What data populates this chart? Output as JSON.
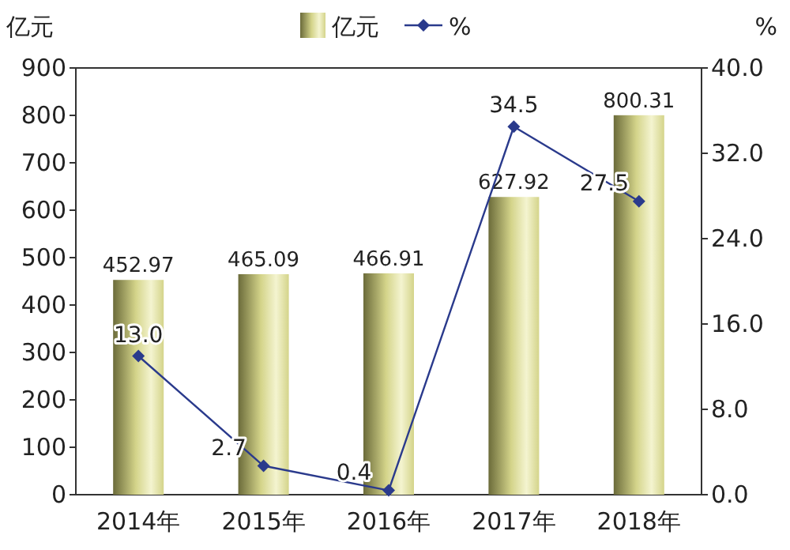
{
  "chart_data": {
    "type": "bar",
    "ylabel": "亿元",
    "y2label": "%",
    "categories": [
      "2014年",
      "2015年",
      "2016年",
      "2017年",
      "2018年"
    ],
    "series": [
      {
        "name": "亿元",
        "color": "#d4d48a",
        "values": [
          452.97,
          465.09,
          466.91,
          627.92,
          800.31
        ]
      },
      {
        "name": "%",
        "type": "line",
        "axis": "y2",
        "color": "#2a3a8c",
        "marker": "diamond",
        "values": [
          13.0,
          2.7,
          0.4,
          34.5,
          27.5
        ],
        "value_labels": [
          "13.0",
          "2.7",
          "0.4",
          "34.5",
          "27.5"
        ]
      }
    ],
    "ylim": [
      0,
      900
    ],
    "yticks": [
      0,
      100,
      200,
      300,
      400,
      500,
      600,
      700,
      800,
      900
    ],
    "y2lim": [
      0,
      40
    ],
    "y2ticks": [
      {
        "value": 0,
        "label": "0.0"
      },
      {
        "value": 8,
        "label": "8.0"
      },
      {
        "value": 16,
        "label": "16.0"
      },
      {
        "value": 24,
        "label": "24.0"
      },
      {
        "value": 32,
        "label": "32.0"
      },
      {
        "value": 40,
        "label": "40.0"
      }
    ],
    "data_labels": true,
    "legend": "top",
    "grid": false
  }
}
